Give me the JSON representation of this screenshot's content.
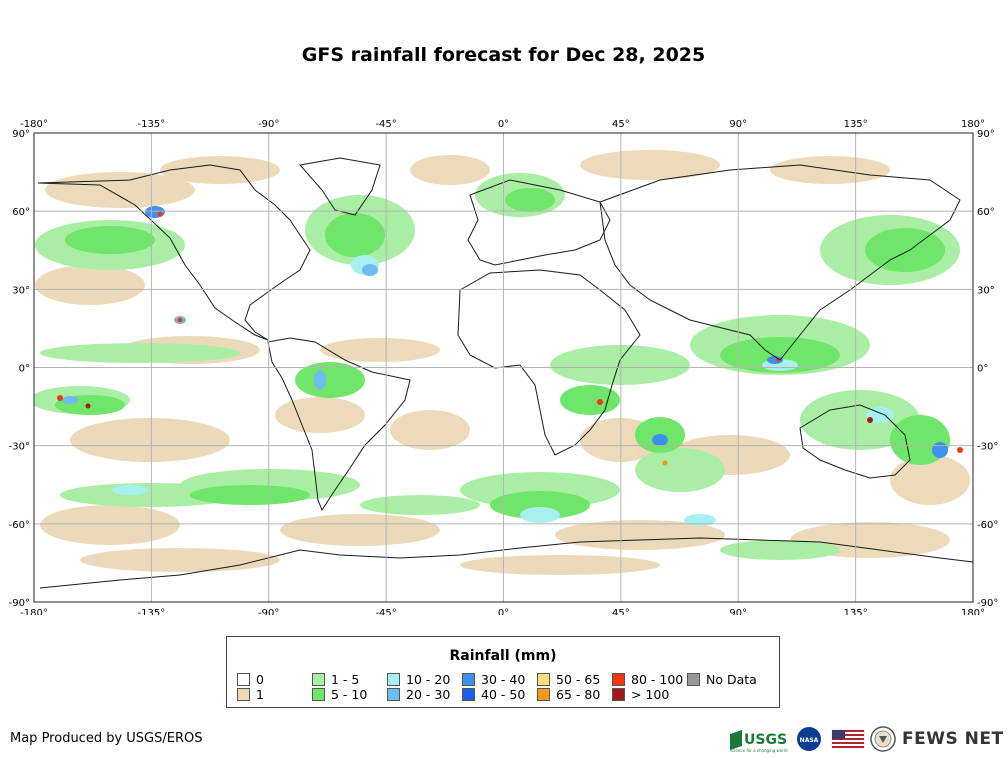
{
  "title": "GFS rainfall forecast for Dec 28, 2025",
  "map": {
    "lon_ticks": [
      "-180°",
      "-135°",
      "-90°",
      "-45°",
      "0°",
      "45°",
      "90°",
      "135°",
      "180°"
    ],
    "lat_ticks": [
      "90°",
      "60°",
      "30°",
      "0°",
      "-30°",
      "-60°",
      "-90°"
    ],
    "colors": {
      "ocean_bg": "#ffffff",
      "r1": "#ecd8b6",
      "r1_5": "#a9eea4",
      "r5_10": "#6fe56a",
      "r10_20": "#a8f0ee",
      "r20_30": "#6ebdf2",
      "r30_40": "#3e8ff0",
      "r40_50": "#1c5ff0",
      "r50_65": "#f7df80",
      "r65_80": "#f49a10",
      "r80_100": "#f03810",
      "r100": "#a01c1c",
      "coast": "#1a1a1a",
      "grid": "#b4b4b4"
    }
  },
  "legend": {
    "title": "Rainfall (mm)",
    "items": [
      {
        "label": "0",
        "color": "#ffffff"
      },
      {
        "label": "1",
        "color": "#ecd8b6"
      },
      {
        "label": "1 - 5",
        "color": "#a9eea4"
      },
      {
        "label": "5 - 10",
        "color": "#6fe56a"
      },
      {
        "label": "10 - 20",
        "color": "#a8f0ee"
      },
      {
        "label": "20 - 30",
        "color": "#6ebdf2"
      },
      {
        "label": "30 - 40",
        "color": "#3e8ff0"
      },
      {
        "label": "40 - 50",
        "color": "#1c5ff0"
      },
      {
        "label": "50 - 65",
        "color": "#f7df80"
      },
      {
        "label": "65 - 80",
        "color": "#f49a10"
      },
      {
        "label": "80 - 100",
        "color": "#f03810"
      },
      {
        "label": "> 100",
        "color": "#a01c1c"
      },
      {
        "label": "No Data",
        "color": "#999999"
      }
    ]
  },
  "footer": {
    "credit": "Map Produced by USGS/EROS",
    "fews": "FEWS NET",
    "usgs": "USGS",
    "usgs_tagline": "science for a changing world",
    "nasa": "NASA"
  }
}
